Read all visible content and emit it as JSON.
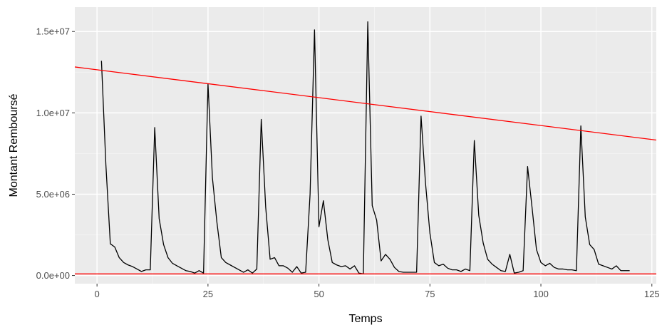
{
  "chart_data": {
    "type": "line",
    "title": "",
    "xlabel": "Temps",
    "ylabel": "Montant Remboursé",
    "xlim": [
      -5,
      126
    ],
    "ylim": [
      -500000,
      16500000
    ],
    "x_ticks": [
      0,
      25,
      50,
      75,
      100,
      125
    ],
    "x_tick_labels": [
      "0",
      "25",
      "50",
      "75",
      "100",
      "125"
    ],
    "y_ticks": [
      0,
      5000000,
      10000000,
      15000000
    ],
    "y_tick_labels": [
      "0.0e+00",
      "5.0e+06",
      "1.0e+07",
      "1.5e+07"
    ],
    "grid": true,
    "legend": "none",
    "colors": {
      "panel": "#ebebeb",
      "grid_major": "#ffffff",
      "grid_minor": "#f5f5f5",
      "series": "#000000",
      "reference": "#ff0000",
      "tick_label": "#4d4d4d"
    },
    "series": [
      {
        "x": [
          1,
          2,
          3,
          4,
          5,
          6,
          7,
          8,
          9,
          10,
          11,
          12,
          13,
          14,
          15,
          16,
          17,
          18,
          19,
          20,
          21,
          22,
          23,
          24,
          25,
          26,
          27,
          28,
          29,
          30,
          31,
          32,
          33,
          34,
          35,
          36,
          37,
          38,
          39,
          40,
          41,
          42,
          43,
          44,
          45,
          46,
          47,
          48,
          49,
          50,
          51,
          52,
          53,
          54,
          55,
          56,
          57,
          58,
          59,
          60,
          61,
          62,
          63,
          64,
          65,
          66,
          67,
          68,
          69,
          70,
          71,
          72,
          73,
          74,
          75,
          76,
          77,
          78,
          79,
          80,
          81,
          82,
          83,
          84,
          85,
          86,
          87,
          88,
          89,
          90,
          91,
          92,
          93,
          94,
          95,
          96,
          97,
          98,
          99,
          100,
          101,
          102,
          103,
          104,
          105,
          106,
          107,
          108,
          109,
          110,
          111,
          112,
          113,
          114,
          115,
          116,
          117,
          118,
          119,
          120
        ],
        "values": [
          13200000,
          6800000,
          1950000,
          1750000,
          1100000,
          800000,
          650000,
          550000,
          400000,
          250000,
          350000,
          350000,
          9100000,
          3500000,
          1900000,
          1100000,
          750000,
          600000,
          450000,
          300000,
          250000,
          150000,
          300000,
          150000,
          11800000,
          6000000,
          3300000,
          1100000,
          800000,
          650000,
          500000,
          350000,
          200000,
          350000,
          150000,
          400000,
          9600000,
          4200000,
          1000000,
          1100000,
          600000,
          600000,
          450000,
          200000,
          550000,
          150000,
          200000,
          5000000,
          15100000,
          3000000,
          4600000,
          2200000,
          800000,
          650000,
          550000,
          600000,
          400000,
          600000,
          150000,
          100000,
          15600000,
          4300000,
          3400000,
          900000,
          1300000,
          1000000,
          500000,
          250000,
          200000,
          200000,
          200000,
          200000,
          9800000,
          5700000,
          2600000,
          800000,
          600000,
          700000,
          450000,
          350000,
          350000,
          250000,
          400000,
          300000,
          8300000,
          3700000,
          2000000,
          1000000,
          700000,
          500000,
          300000,
          250000,
          1300000,
          150000,
          200000,
          300000,
          6700000,
          4200000,
          1600000,
          800000,
          600000,
          750000,
          500000,
          400000,
          400000,
          350000,
          350000,
          300000,
          9200000,
          3600000,
          1900000,
          1600000,
          700000,
          600000,
          500000,
          400000,
          600000,
          300000,
          300000,
          300000
        ]
      }
    ],
    "reference_lines": [
      {
        "intercept": 12650000,
        "slope": -34300
      },
      {
        "intercept": 100000,
        "slope": 0
      }
    ]
  }
}
